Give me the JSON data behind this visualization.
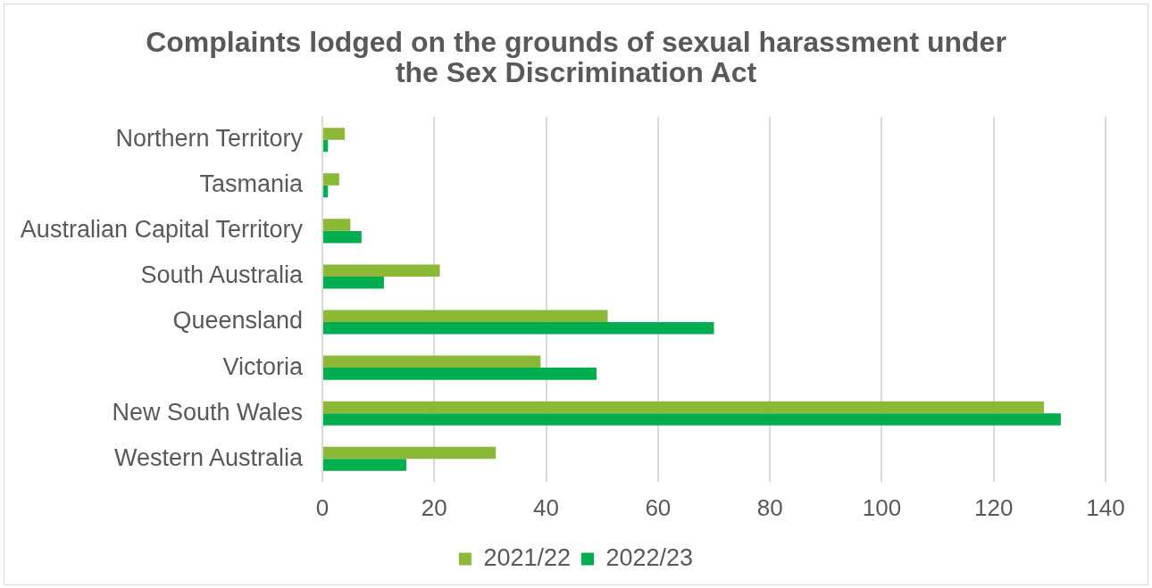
{
  "chart_data": {
    "type": "bar",
    "orientation": "horizontal",
    "title": "Complaints lodged on the grounds of sexual harassment under the Sex Discrimination Act",
    "categories": [
      "Northern Territory",
      "Tasmania",
      "Australian Capital Territory",
      "South Australia",
      "Queensland",
      "Victoria",
      "New South Wales",
      "Western Australia"
    ],
    "series": [
      {
        "name": "2021/22",
        "color": "#8bb836",
        "values": [
          4,
          3,
          5,
          21,
          51,
          39,
          129,
          31
        ]
      },
      {
        "name": "2022/23",
        "color": "#00ad4f",
        "values": [
          1,
          1,
          7,
          11,
          70,
          49,
          132,
          15
        ]
      }
    ],
    "xlim": [
      0,
      140
    ],
    "xticks": [
      0,
      20,
      40,
      60,
      80,
      100,
      120,
      140
    ],
    "grid": "x",
    "legend": "bottom"
  }
}
